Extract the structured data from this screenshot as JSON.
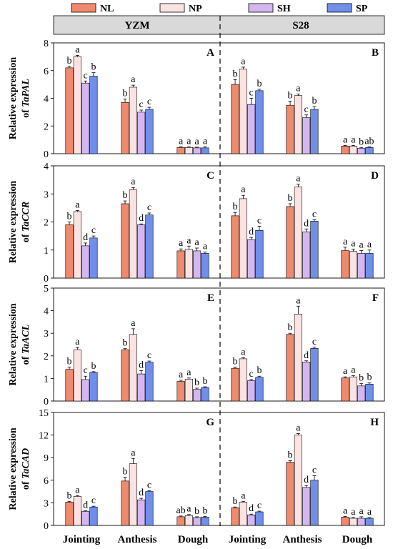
{
  "legend": {
    "items": [
      {
        "label": "NL",
        "color": "#F08A6E"
      },
      {
        "label": "NP",
        "color": "#FCE3E3"
      },
      {
        "label": "SH",
        "color": "#D4B7F0"
      },
      {
        "label": "SP",
        "color": "#6F8FE8"
      }
    ]
  },
  "header": {
    "left": "YZM",
    "right": "S28"
  },
  "chart_data": [
    {
      "type": "bar",
      "ylabel_line1": "Relative expression",
      "ylabel_line2_prefix": "of",
      "ylabel_gene": "TaPAL",
      "ylim": [
        0,
        8
      ],
      "yticks": [
        0,
        2,
        4,
        6,
        8
      ],
      "categories": [
        "Jointing",
        "Anthesis",
        "Dough"
      ],
      "panels": [
        {
          "letter": "A",
          "variety": "YZM",
          "series": [
            {
              "name": "NL",
              "values": [
                6.2,
                3.7,
                0.45
              ],
              "errors": [
                0.1,
                0.25,
                0.05
              ],
              "letters": [
                "b",
                "b",
                "a"
              ]
            },
            {
              "name": "NP",
              "values": [
                7.0,
                4.8,
                0.45
              ],
              "errors": [
                0.1,
                0.15,
                0.05
              ],
              "letters": [
                "a",
                "a",
                "a"
              ]
            },
            {
              "name": "SH",
              "values": [
                5.1,
                3.0,
                0.42
              ],
              "errors": [
                0.15,
                0.15,
                0.05
              ],
              "letters": [
                "c",
                "c",
                "a"
              ]
            },
            {
              "name": "SP",
              "values": [
                5.6,
                3.2,
                0.42
              ],
              "errors": [
                0.25,
                0.15,
                0.08
              ],
              "letters": [
                "b",
                "c",
                "a"
              ]
            }
          ]
        },
        {
          "letter": "B",
          "variety": "S28",
          "series": [
            {
              "name": "NL",
              "values": [
                5.0,
                3.5,
                0.55
              ],
              "errors": [
                0.35,
                0.3,
                0.05
              ],
              "letters": [
                "b",
                "b",
                "a"
              ]
            },
            {
              "name": "NP",
              "values": [
                6.1,
                4.2,
                0.55
              ],
              "errors": [
                0.15,
                0.1,
                0.05
              ],
              "letters": [
                "a",
                "a",
                "a"
              ]
            },
            {
              "name": "SH",
              "values": [
                3.55,
                2.6,
                0.4
              ],
              "errors": [
                0.45,
                0.2,
                0.05
              ],
              "letters": [
                "c",
                "c",
                "b"
              ]
            },
            {
              "name": "SP",
              "values": [
                4.55,
                3.2,
                0.45
              ],
              "errors": [
                0.1,
                0.2,
                0.05
              ],
              "letters": [
                "b",
                "b",
                "ab"
              ]
            }
          ]
        }
      ]
    },
    {
      "type": "bar",
      "ylabel_line1": "Relative expression",
      "ylabel_line2_prefix": "of",
      "ylabel_gene": "TaCCR",
      "ylim": [
        0,
        4
      ],
      "yticks": [
        0,
        1,
        2,
        3,
        4
      ],
      "categories": [
        "Jointing",
        "Anthesis",
        "Dough"
      ],
      "panels": [
        {
          "letter": "C",
          "variety": "YZM",
          "series": [
            {
              "name": "NL",
              "values": [
                1.9,
                2.65,
                0.97
              ],
              "errors": [
                0.1,
                0.1,
                0.07
              ],
              "letters": [
                "b",
                "b",
                "a"
              ]
            },
            {
              "name": "NP",
              "values": [
                2.37,
                3.15,
                1.02
              ],
              "errors": [
                0.04,
                0.08,
                0.12
              ],
              "letters": [
                "a",
                "a",
                "a"
              ]
            },
            {
              "name": "SH",
              "values": [
                1.15,
                1.9,
                0.97
              ],
              "errors": [
                0.1,
                0.03,
                0.1
              ],
              "letters": [
                "d",
                "d",
                "a"
              ]
            },
            {
              "name": "SP",
              "values": [
                1.43,
                2.25,
                0.88
              ],
              "errors": [
                0.07,
                0.07,
                0.05
              ],
              "letters": [
                "c",
                "c",
                "a"
              ]
            }
          ]
        },
        {
          "letter": "D",
          "variety": "S28",
          "series": [
            {
              "name": "NL",
              "values": [
                2.22,
                2.55,
                0.98
              ],
              "errors": [
                0.12,
                0.1,
                0.12
              ],
              "letters": [
                "b",
                "b",
                "a"
              ]
            },
            {
              "name": "NP",
              "values": [
                2.83,
                3.25,
                0.95
              ],
              "errors": [
                0.12,
                0.1,
                0.08
              ],
              "letters": [
                "a",
                "a",
                "a"
              ]
            },
            {
              "name": "SH",
              "values": [
                1.37,
                1.65,
                0.88
              ],
              "errors": [
                0.08,
                0.1,
                0.1
              ],
              "letters": [
                "d",
                "d",
                "a"
              ]
            },
            {
              "name": "SP",
              "values": [
                1.7,
                2.03,
                0.88
              ],
              "errors": [
                0.15,
                0.05,
                0.12
              ],
              "letters": [
                "c",
                "c",
                "a"
              ]
            }
          ]
        }
      ]
    },
    {
      "type": "bar",
      "ylabel_line1": "Relative expression",
      "ylabel_line2_prefix": "of",
      "ylabel_gene": "TaACL",
      "ylim": [
        0,
        5
      ],
      "yticks": [
        0,
        1,
        2,
        3,
        4,
        5
      ],
      "categories": [
        "Jointing",
        "Anthesis",
        "Dough"
      ],
      "panels": [
        {
          "letter": "E",
          "variety": "YZM",
          "series": [
            {
              "name": "NL",
              "values": [
                1.4,
                2.27,
                0.87
              ],
              "errors": [
                0.1,
                0.05,
                0.05
              ],
              "letters": [
                "b",
                "b",
                "a"
              ]
            },
            {
              "name": "NP",
              "values": [
                2.27,
                2.95,
                0.97
              ],
              "errors": [
                0.1,
                0.25,
                0.05
              ],
              "letters": [
                "a",
                "a",
                "a"
              ]
            },
            {
              "name": "SH",
              "values": [
                0.95,
                1.2,
                0.52
              ],
              "errors": [
                0.15,
                0.15,
                0.05
              ],
              "letters": [
                "c",
                "d",
                "b"
              ]
            },
            {
              "name": "SP",
              "values": [
                1.27,
                1.72,
                0.6
              ],
              "errors": [
                0.03,
                0.05,
                0.03
              ],
              "letters": [
                "b",
                "c",
                "b"
              ]
            }
          ]
        },
        {
          "letter": "F",
          "variety": "S28",
          "series": [
            {
              "name": "NL",
              "values": [
                1.45,
                2.95,
                1.02
              ],
              "errors": [
                0.05,
                0.05,
                0.05
              ],
              "letters": [
                "b",
                "b",
                "a"
              ]
            },
            {
              "name": "NP",
              "values": [
                1.87,
                3.85,
                1.07
              ],
              "errors": [
                0.05,
                0.35,
                0.05
              ],
              "letters": [
                "a",
                "a",
                "a"
              ]
            },
            {
              "name": "SH",
              "values": [
                0.9,
                1.73,
                0.67
              ],
              "errors": [
                0.05,
                0.05,
                0.1
              ],
              "letters": [
                "c",
                "d",
                "b"
              ]
            },
            {
              "name": "SP",
              "values": [
                1.05,
                2.33,
                0.75
              ],
              "errors": [
                0.05,
                0.05,
                0.05
              ],
              "letters": [
                "b",
                "c",
                "b"
              ]
            }
          ]
        }
      ]
    },
    {
      "type": "bar",
      "ylabel_line1": "Relative expression",
      "ylabel_line2_prefix": "of",
      "ylabel_gene": "TaCAD",
      "ylim": [
        0,
        15
      ],
      "yticks": [
        0,
        3,
        6,
        9,
        12,
        15
      ],
      "categories": [
        "Jointing",
        "Anthesis",
        "Dough"
      ],
      "panels": [
        {
          "letter": "G",
          "variety": "YZM",
          "series": [
            {
              "name": "NL",
              "values": [
                3.1,
                5.9,
                1.15
              ],
              "errors": [
                0.1,
                0.5,
                0.1
              ],
              "letters": [
                "b",
                "b",
                "ab"
              ]
            },
            {
              "name": "NP",
              "values": [
                3.85,
                8.2,
                1.3
              ],
              "errors": [
                0.1,
                0.7,
                0.15
              ],
              "letters": [
                "a",
                "a",
                "a"
              ]
            },
            {
              "name": "SH",
              "values": [
                1.85,
                3.4,
                1.05
              ],
              "errors": [
                0.1,
                0.2,
                0.1
              ],
              "letters": [
                "d",
                "d",
                "b"
              ]
            },
            {
              "name": "SP",
              "values": [
                2.45,
                4.5,
                1.1
              ],
              "errors": [
                0.1,
                0.1,
                0.1
              ],
              "letters": [
                "c",
                "c",
                "b"
              ]
            }
          ]
        },
        {
          "letter": "H",
          "variety": "S28",
          "series": [
            {
              "name": "NL",
              "values": [
                2.35,
                8.4,
                1.1
              ],
              "errors": [
                0.1,
                0.2,
                0.1
              ],
              "letters": [
                "b",
                "b",
                "a"
              ]
            },
            {
              "name": "NP",
              "values": [
                3.1,
                12.0,
                0.95
              ],
              "errors": [
                0.1,
                0.2,
                0.1
              ],
              "letters": [
                "a",
                "a",
                "a"
              ]
            },
            {
              "name": "SH",
              "values": [
                1.4,
                5.05,
                0.95
              ],
              "errors": [
                0.1,
                0.25,
                0.2
              ],
              "letters": [
                "d",
                "d",
                "a"
              ]
            },
            {
              "name": "SP",
              "values": [
                1.8,
                6.0,
                0.95
              ],
              "errors": [
                0.1,
                0.6,
                0.1
              ],
              "letters": [
                "c",
                "c",
                "a"
              ]
            }
          ]
        }
      ]
    }
  ]
}
